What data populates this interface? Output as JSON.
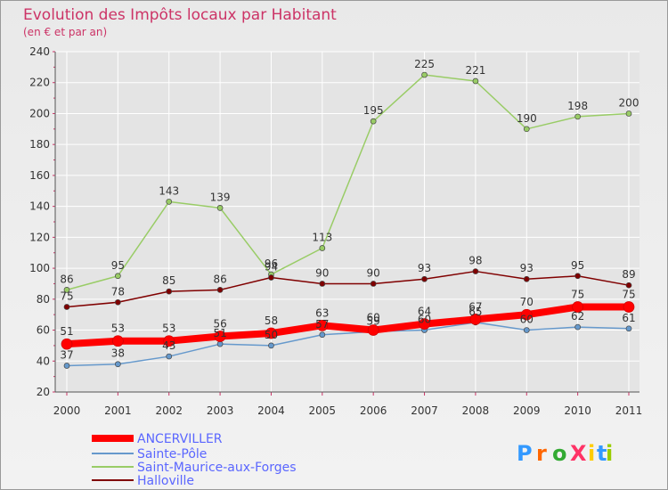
{
  "chart_data": {
    "type": "line",
    "title": "Evolution des Impôts locaux par Habitant",
    "subtitle": "(en € et par an)",
    "x": [
      "2000",
      "2001",
      "2002",
      "2003",
      "2004",
      "2005",
      "2006",
      "2007",
      "2008",
      "2009",
      "2010",
      "2011"
    ],
    "ylim": [
      20,
      240
    ],
    "yticks": [
      20,
      40,
      60,
      80,
      100,
      120,
      140,
      160,
      180,
      200,
      220,
      240
    ],
    "grid": true,
    "legend_position": "bottom-left",
    "series": [
      {
        "name": "ANCERVILLER",
        "color": "#ff0000",
        "values": [
          51,
          53,
          53,
          56,
          58,
          63,
          60,
          64,
          67,
          70,
          75,
          75
        ],
        "labels": [
          "51",
          "53",
          "53",
          "56",
          "58",
          "63",
          "60",
          "64",
          "67",
          "70",
          "75",
          "75"
        ]
      },
      {
        "name": "Sainte-Pôle",
        "color": "#6699cc",
        "values": [
          37,
          38,
          43,
          51,
          50,
          57,
          59,
          60,
          65,
          60,
          62,
          61
        ],
        "labels": [
          "37",
          "38",
          "43",
          "51",
          "50",
          "57",
          "59",
          "60",
          "65",
          "60",
          "62",
          "61"
        ]
      },
      {
        "name": "Saint-Maurice-aux-Forges",
        "color": "#99cc66",
        "values": [
          86,
          95,
          143,
          139,
          96,
          113,
          195,
          225,
          221,
          190,
          198,
          200
        ],
        "labels": [
          "86",
          "95",
          "143",
          "139",
          "96",
          "113",
          "195",
          "225",
          "221",
          "190",
          "198",
          "200"
        ]
      },
      {
        "name": "Halloville",
        "color": "#800000",
        "values": [
          75,
          78,
          85,
          86,
          94,
          90,
          90,
          93,
          98,
          93,
          95,
          89
        ],
        "labels": [
          "75",
          "78",
          "85",
          "86",
          "94",
          "90",
          "90",
          "93",
          "98",
          "93",
          "95",
          "89"
        ]
      }
    ],
    "colors": {
      "title": "#cc3366",
      "grid": "#ffffff",
      "axis": "#555555",
      "tick_mark": "#cc3366",
      "legend_text": "#5a66ff",
      "label_text": "#333333"
    }
  },
  "logo": {
    "text": "ProXiti",
    "colors": [
      "#3399ff",
      "#ff6600",
      "#33aa33",
      "#ff3366",
      "#ffcc00",
      "#3399ff",
      "#99cc00"
    ]
  }
}
